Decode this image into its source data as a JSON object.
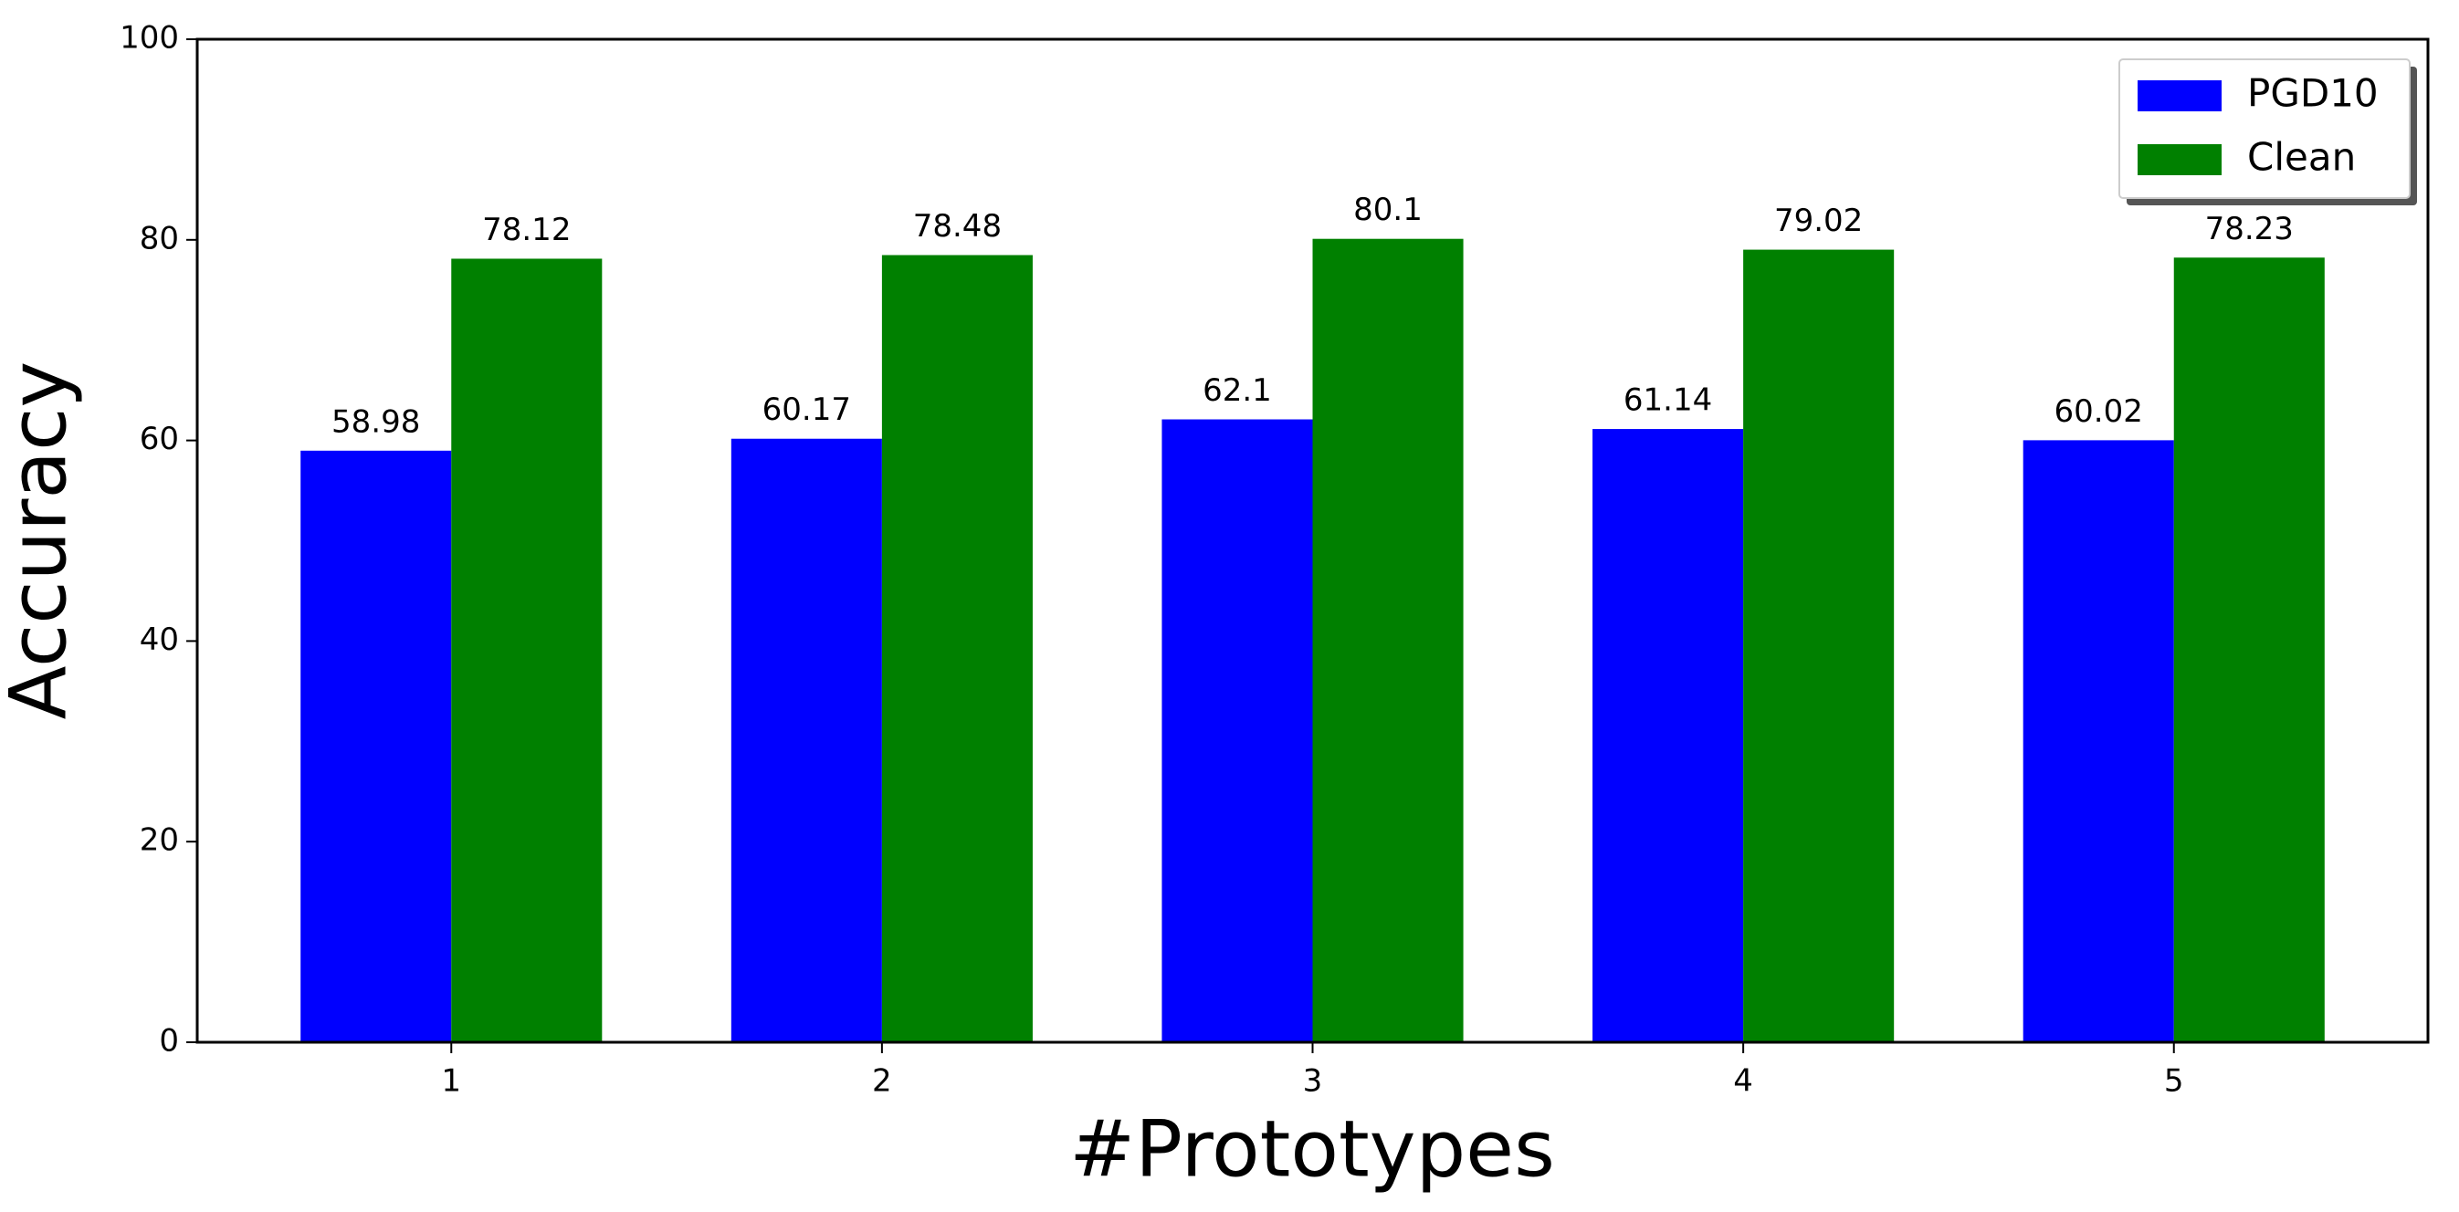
{
  "chart_data": {
    "type": "bar",
    "x_label": "#Prototypes",
    "y_label": "Accuracy",
    "categories": [
      "1",
      "2",
      "3",
      "4",
      "5"
    ],
    "series": [
      {
        "name": "PGD10",
        "color": "#0000ff",
        "values": [
          58.98,
          60.17,
          62.1,
          61.14,
          60.02
        ]
      },
      {
        "name": "Clean",
        "color": "#008000",
        "values": [
          78.12,
          78.48,
          80.1,
          79.02,
          78.23
        ]
      }
    ],
    "ylim": [
      0,
      100
    ],
    "yticks": [
      0,
      20,
      40,
      60,
      80,
      100
    ],
    "legend": "upper-right"
  }
}
